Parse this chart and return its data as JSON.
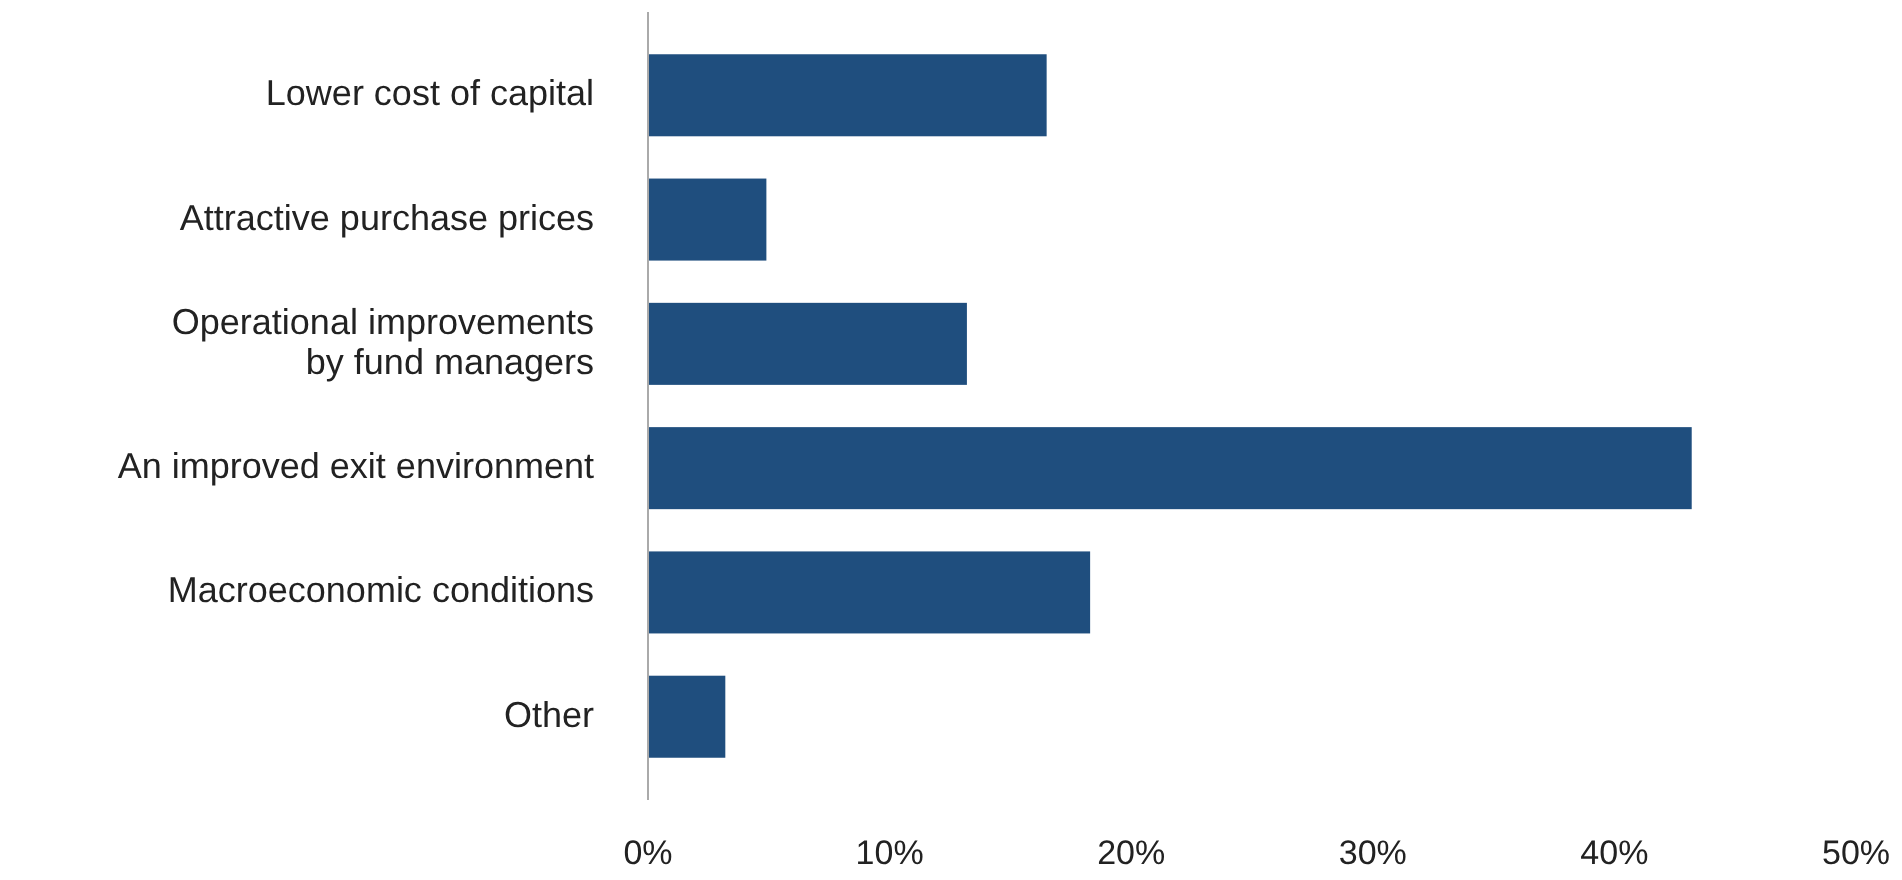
{
  "chart_data": {
    "type": "bar",
    "orientation": "horizontal",
    "categories": [
      "Lower cost of capital",
      "Attractive purchase prices",
      "Operational improvements\nby fund managers",
      "An improved exit environment",
      "Macroeconomic conditions",
      "Other"
    ],
    "values": [
      16.5,
      4.9,
      13.2,
      43.2,
      18.3,
      3.2
    ],
    "color": "#1f4e7e",
    "xlim": [
      0,
      50
    ],
    "xticks": [
      {
        "value": 0,
        "label": "0%"
      },
      {
        "value": 10,
        "label": "10%"
      },
      {
        "value": 20,
        "label": "20%"
      },
      {
        "value": 30,
        "label": "30%"
      },
      {
        "value": 40,
        "label": "40%"
      },
      {
        "value": 50,
        "label": "50%"
      }
    ],
    "grid": false
  }
}
